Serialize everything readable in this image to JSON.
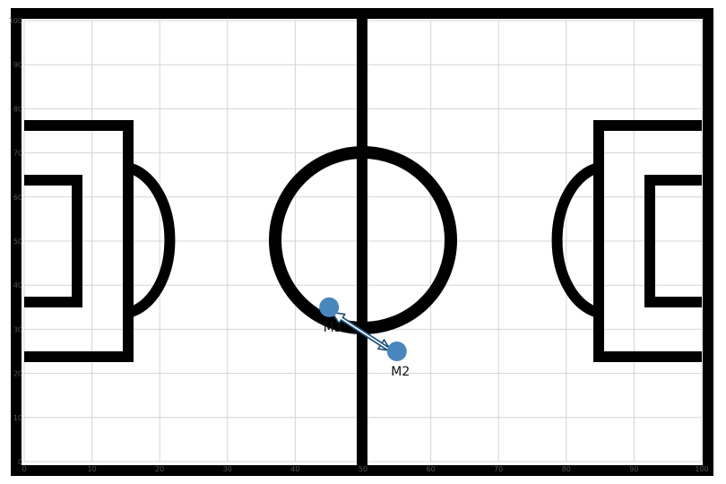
{
  "chart_data": {
    "type": "scatter",
    "title": "",
    "xlabel": "",
    "ylabel": "",
    "xlim": [
      0,
      100
    ],
    "ylim": [
      0,
      100
    ],
    "grid": true,
    "x_ticks": [
      "0",
      "10",
      "20",
      "30",
      "40",
      "50",
      "60",
      "70",
      "80",
      "90",
      "100"
    ],
    "y_ticks": [
      "0",
      "10",
      "20",
      "30",
      "40",
      "50",
      "60",
      "70",
      "80",
      "90",
      "100"
    ],
    "players": [
      {
        "label": "M3",
        "x": 45,
        "y": 35
      },
      {
        "label": "M2",
        "x": 55,
        "y": 25
      }
    ],
    "passes": [
      {
        "from": "M3",
        "to": "M2"
      },
      {
        "from": "M2",
        "to": "M3"
      }
    ],
    "colors": {
      "player": "#4a86be",
      "arrow_edge": "#1f4e79",
      "arrow_fill": "#ffffff",
      "pitch_line": "#000000",
      "grid": "#d4d4d4"
    }
  }
}
